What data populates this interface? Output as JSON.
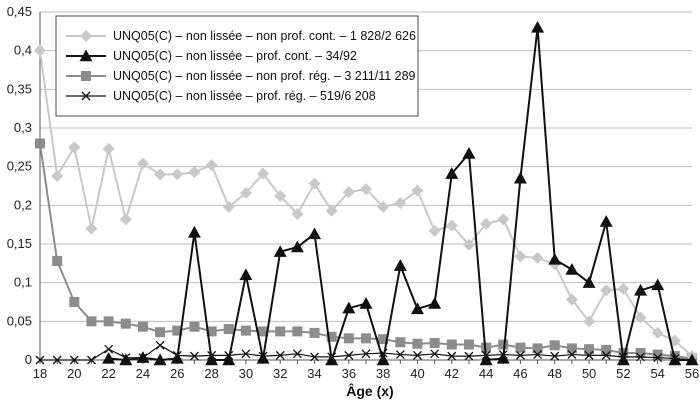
{
  "chart_data": {
    "type": "line",
    "title": "",
    "xlabel": "Âge (x)",
    "ylabel": "",
    "xlim": [
      18,
      56
    ],
    "ylim": [
      0,
      0.45
    ],
    "grid": "horizontal",
    "legend_position": "top-left",
    "x_ticks": [
      "18",
      "20",
      "22",
      "24",
      "26",
      "28",
      "30",
      "32",
      "34",
      "36",
      "38",
      "40",
      "42",
      "44",
      "46",
      "48",
      "50",
      "52",
      "54",
      "56"
    ],
    "y_ticks": [
      "0",
      "0,05",
      "0,1",
      "0,15",
      "0,2",
      "0,25",
      "0,3",
      "0,35",
      "0,4",
      "0,45"
    ],
    "series": [
      {
        "name": "UNQ05(C) – non lissée – non prof. cont. – 1 828/2 626",
        "color": "#c8c8c8",
        "marker": "diamond",
        "x": [
          18,
          19,
          20,
          21,
          22,
          23,
          24,
          25,
          26,
          27,
          28,
          29,
          30,
          31,
          32,
          33,
          34,
          35,
          36,
          37,
          38,
          39,
          40,
          41,
          42,
          43,
          44,
          45,
          46,
          47,
          48,
          49,
          50,
          51,
          52,
          53,
          54,
          55,
          56
        ],
        "values": [
          0.4,
          0.238,
          0.275,
          0.17,
          0.273,
          0.182,
          0.254,
          0.24,
          0.24,
          0.243,
          0.252,
          0.198,
          0.216,
          0.241,
          0.212,
          0.189,
          0.228,
          0.193,
          0.217,
          0.221,
          0.198,
          0.203,
          0.219,
          0.167,
          0.174,
          0.149,
          0.176,
          0.182,
          0.134,
          0.132,
          0.124,
          0.078,
          0.05,
          0.09,
          0.092,
          0.055,
          0.035,
          0.025,
          0.005
        ]
      },
      {
        "name": "UNQ05(C) – non lissée – prof. cont. – 34/92",
        "color": "#111111",
        "marker": "triangle",
        "x": [
          22,
          23,
          24,
          25,
          26,
          27,
          28,
          29,
          30,
          31,
          32,
          33,
          34,
          35,
          36,
          37,
          38,
          39,
          40,
          41,
          42,
          43,
          44,
          45,
          46,
          47,
          48,
          49,
          50,
          51,
          52,
          53,
          54,
          55,
          56
        ],
        "values": [
          0.002,
          0.0,
          0.003,
          0.0,
          0.002,
          0.165,
          0.0,
          0.0,
          0.11,
          0.002,
          0.14,
          0.146,
          0.163,
          0.0,
          0.067,
          0.073,
          0.0,
          0.122,
          0.066,
          0.073,
          0.241,
          0.267,
          0.0,
          0.002,
          0.235,
          0.43,
          0.13,
          0.117,
          0.1,
          0.179,
          0.0,
          0.09,
          0.097,
          0.0,
          0.0
        ]
      },
      {
        "name": "UNQ05(C) – non lissée – non prof. rég. – 3 211/11 289",
        "color": "#8c8c8c",
        "marker": "square",
        "x": [
          18,
          19,
          20,
          21,
          22,
          23,
          24,
          25,
          26,
          27,
          28,
          29,
          30,
          31,
          32,
          33,
          34,
          35,
          36,
          37,
          38,
          39,
          40,
          41,
          42,
          43,
          44,
          45,
          46,
          47,
          48,
          49,
          50,
          51,
          52,
          53,
          54,
          55,
          56
        ],
        "values": [
          0.28,
          0.128,
          0.075,
          0.05,
          0.05,
          0.047,
          0.043,
          0.036,
          0.038,
          0.043,
          0.037,
          0.04,
          0.038,
          0.037,
          0.037,
          0.037,
          0.035,
          0.03,
          0.028,
          0.028,
          0.027,
          0.023,
          0.021,
          0.022,
          0.02,
          0.02,
          0.016,
          0.02,
          0.016,
          0.015,
          0.019,
          0.015,
          0.014,
          0.013,
          0.009,
          0.009,
          0.007,
          0.005,
          0.002
        ]
      },
      {
        "name": "UNQ05(C) – non lissée – prof. rég. – 519/6 208",
        "color": "#111111",
        "marker": "x",
        "x": [
          18,
          19,
          20,
          21,
          22,
          23,
          24,
          25,
          26,
          27,
          28,
          29,
          30,
          31,
          32,
          33,
          34,
          35,
          36,
          37,
          38,
          39,
          40,
          41,
          42,
          43,
          44,
          45,
          46,
          47,
          48,
          49,
          50,
          51,
          52,
          53,
          54,
          55,
          56
        ],
        "values": [
          0.0,
          0.0,
          0.0,
          0.0,
          0.014,
          0.003,
          0.003,
          0.019,
          0.006,
          0.005,
          0.006,
          0.006,
          0.008,
          0.005,
          0.006,
          0.008,
          0.004,
          0.004,
          0.006,
          0.008,
          0.009,
          0.007,
          0.006,
          0.008,
          0.005,
          0.005,
          0.006,
          0.007,
          0.006,
          0.007,
          0.005,
          0.007,
          0.006,
          0.006,
          0.004,
          0.004,
          0.003,
          0.002,
          0.0
        ]
      }
    ]
  }
}
